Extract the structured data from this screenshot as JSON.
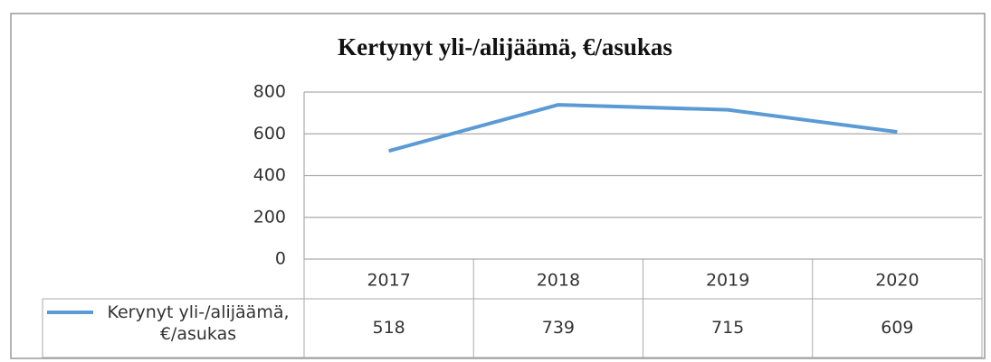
{
  "chart_data": {
    "type": "line",
    "title": "Kertynyt yli-/alijäämä, €/asukas",
    "categories": [
      "2017",
      "2018",
      "2019",
      "2020"
    ],
    "series": [
      {
        "name": "Kerynyt yli-/alijäämä, €/asukas",
        "color": "#5b9bd5",
        "values": [
          518,
          739,
          715,
          609
        ]
      }
    ],
    "ylim": [
      0,
      800
    ],
    "yticks": [
      0,
      200,
      400,
      600,
      800
    ],
    "grid": true,
    "data_table": true
  }
}
